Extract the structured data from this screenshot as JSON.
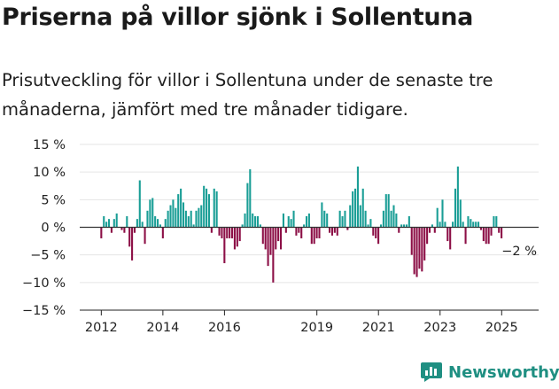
{
  "header": {
    "title": "Priserna på villor sjönk i Sollentuna",
    "subtitle": "Prisutveckling för villor i Sollentuna under de senaste tre månaderna, jämfört med tre månader tidigare."
  },
  "brand": {
    "name": "Newsworthy",
    "icon": "bar-chart-logo-icon"
  },
  "colors": {
    "positive": "#1a9e96",
    "negative": "#8c0f46",
    "zero_line": "#333333",
    "grid": "#e5e5e5",
    "brand": "#1f8f82"
  },
  "chart_data": {
    "type": "bar",
    "title": "Priserna på villor sjönk i Sollentuna",
    "subtitle": "Prisutveckling för villor i Sollentuna under de senaste tre månaderna, jämfört med tre månader tidigare.",
    "xlabel": "",
    "ylabel": "",
    "ylim": [
      -15,
      15
    ],
    "yticks": [
      15,
      10,
      5,
      0,
      -5,
      -10,
      -15
    ],
    "ytick_labels": [
      "15 %",
      "10 %",
      "5 %",
      "0 %",
      "−5 %",
      "−10 %",
      "−15 %"
    ],
    "xlim": [
      2011.3,
      2026.2
    ],
    "xticks": [
      2012,
      2014,
      2016,
      2019,
      2021,
      2023,
      2025
    ],
    "xtick_labels": [
      "2012",
      "2014",
      "2016",
      "2019",
      "2021",
      "2023",
      "2025"
    ],
    "grid": true,
    "legend": "none",
    "start": 2012.0,
    "step": 0.0833,
    "unit": "%",
    "last_value_label": "−2 %",
    "values": [
      -2,
      2,
      1,
      1.5,
      -1,
      1.5,
      2.5,
      0,
      -0.5,
      -1,
      2,
      -3.5,
      -6,
      -1,
      1.5,
      8.5,
      1,
      -3,
      3,
      5,
      5.3,
      2,
      1.5,
      0.5,
      -2,
      1.5,
      3,
      4,
      5,
      3.5,
      6,
      7,
      4.5,
      3,
      2,
      3,
      0.5,
      3,
      3.5,
      4,
      7.5,
      7,
      6,
      -1,
      7,
      6.5,
      -1.5,
      -2,
      -6.5,
      -2,
      -2,
      -2,
      -4,
      -3.5,
      -2.5,
      0.5,
      2.5,
      8,
      10.5,
      2.5,
      2,
      2,
      0.5,
      -3,
      -4,
      -7,
      -5,
      -10,
      -4,
      -2.5,
      -4,
      2.5,
      -1,
      2,
      1.5,
      3,
      -1.5,
      -1,
      -2,
      0.5,
      2,
      2.5,
      -3,
      -3,
      -2,
      -2,
      4.5,
      3,
      2.5,
      -1,
      -1.5,
      -1,
      -1.5,
      3,
      2,
      3,
      -0.5,
      4,
      6.5,
      7,
      11,
      4,
      7,
      3,
      0.5,
      1.5,
      -1.5,
      -2,
      -3,
      0.5,
      3,
      6,
      6,
      3,
      4,
      2.5,
      -1,
      0.5,
      0.5,
      0.5,
      2,
      -5,
      -8.5,
      -9,
      -7.5,
      -8,
      -6,
      -3,
      -1,
      0.5,
      -1,
      3.5,
      1,
      5,
      1,
      -2.5,
      -4,
      1,
      7,
      11,
      5,
      1,
      -3,
      2,
      1.5,
      1,
      1,
      1,
      -0.5,
      -2.5,
      -3,
      -3,
      -1.5,
      2,
      2,
      -1,
      -2
    ]
  }
}
